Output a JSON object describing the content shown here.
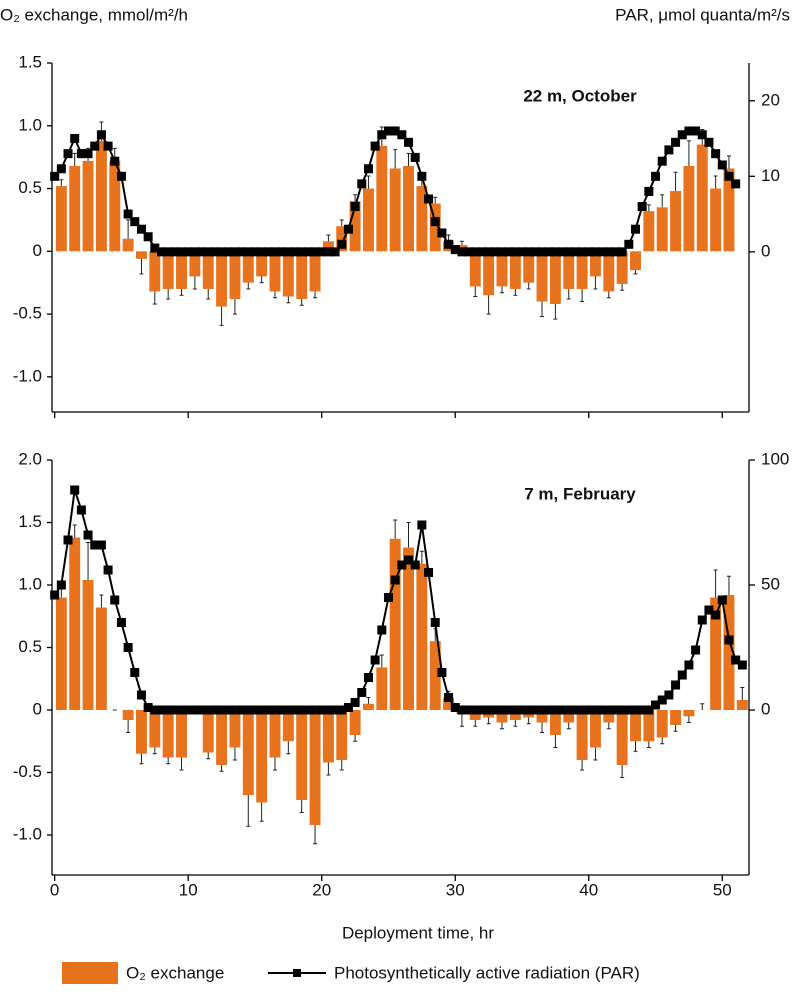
{
  "chart_data": [
    {
      "type": "bar-line",
      "ylabel": "O₂ exchange, mmol/m²/h",
      "y2label": "PAR, μmol quanta/m²/s",
      "annotation": "22 m, October",
      "xlim": [
        -0.2,
        52
      ],
      "xticks": [
        0,
        10,
        20,
        30,
        40,
        50
      ],
      "ylim": [
        -1.28,
        1.5
      ],
      "yticks": [
        {
          "value": -1,
          "label": "-1.0"
        },
        -0.5,
        0,
        0.5,
        {
          "value": 1,
          "label": "1.0"
        },
        1.5
      ],
      "y2lim": [
        -21.2,
        25
      ],
      "y2ticks": [
        0,
        10,
        20
      ],
      "series": [
        {
          "name": "O₂ exchange",
          "type": "bar",
          "color": "#e8731f",
          "x": [
            0.5,
            1.5,
            2.5,
            3.5,
            4.5,
            5.5,
            6.5,
            7.5,
            8.5,
            9.5,
            10.5,
            11.5,
            12.5,
            13.5,
            14.5,
            15.5,
            16.5,
            17.5,
            18.5,
            19.5,
            20.5,
            21.5,
            22.5,
            23.5,
            24.5,
            25.5,
            26.5,
            27.5,
            28.5,
            29.5,
            30.5,
            31.5,
            32.5,
            33.5,
            34.5,
            35.5,
            36.5,
            37.5,
            38.5,
            39.5,
            40.5,
            41.5,
            42.5,
            43.5,
            44.5,
            45.5,
            46.5,
            47.5,
            48.5,
            49.5,
            50.5
          ],
          "values": [
            0.52,
            0.68,
            0.72,
            0.88,
            0.72,
            0.1,
            -0.06,
            -0.32,
            -0.3,
            -0.3,
            -0.2,
            -0.3,
            -0.44,
            -0.38,
            -0.25,
            -0.2,
            -0.32,
            -0.36,
            -0.38,
            -0.32,
            0.08,
            0.2,
            0.4,
            0.5,
            0.84,
            0.66,
            0.68,
            0.52,
            0.38,
            0.08,
            0.05,
            -0.28,
            -0.35,
            -0.28,
            -0.3,
            -0.25,
            -0.4,
            -0.42,
            -0.3,
            -0.3,
            -0.2,
            -0.32,
            -0.26,
            -0.15,
            0.32,
            0.35,
            0.48,
            0.68,
            0.85,
            0.5,
            0.66
          ],
          "errors": [
            0.05,
            0.1,
            0.1,
            0.15,
            0.1,
            0.15,
            0.12,
            0.1,
            0.08,
            0.05,
            0.1,
            0.08,
            0.15,
            0.12,
            0.05,
            0.05,
            0.05,
            0.05,
            0.05,
            0.05,
            0.05,
            0.05,
            0.05,
            0.1,
            0.15,
            0.15,
            0.1,
            0.05,
            0.05,
            0.05,
            0.03,
            0.08,
            0.15,
            0.05,
            0.05,
            0.05,
            0.12,
            0.12,
            0.08,
            0.1,
            0.1,
            0.05,
            0.05,
            0.03,
            0.05,
            0.1,
            0.15,
            0.2,
            0.12,
            0.1,
            0.1
          ]
        },
        {
          "name": "Photosynthetically active radiation (PAR)",
          "type": "line",
          "axis": "y2",
          "color": "#000000",
          "x": [
            0,
            0.5,
            1,
            1.5,
            2,
            2.5,
            3,
            3.5,
            4,
            4.5,
            5,
            5.5,
            6,
            6.5,
            7,
            7.5,
            8,
            8.5,
            9,
            9.5,
            10,
            10.5,
            11,
            11.5,
            12,
            12.5,
            13,
            13.5,
            14,
            14.5,
            15,
            15.5,
            16,
            16.5,
            17,
            17.5,
            18,
            18.5,
            19,
            19.5,
            20,
            20.5,
            21,
            21.5,
            22,
            22.5,
            23,
            23.5,
            24,
            24.5,
            25,
            25.5,
            26,
            26.5,
            27,
            27.5,
            28,
            28.5,
            29,
            29.5,
            30,
            30.5,
            31,
            31.5,
            32,
            32.5,
            33,
            33.5,
            34,
            34.5,
            35,
            35.5,
            36,
            36.5,
            37,
            37.5,
            38,
            38.5,
            39,
            39.5,
            40,
            40.5,
            41,
            41.5,
            42,
            42.5,
            43,
            43.5,
            44,
            44.5,
            45,
            45.5,
            46,
            46.5,
            47,
            47.5,
            48,
            48.5,
            49,
            49.5,
            50,
            50.5,
            51
          ],
          "values": [
            10,
            11,
            13,
            15,
            13,
            13,
            14,
            15.5,
            14,
            12,
            10,
            5,
            4,
            3,
            2,
            0.5,
            0,
            0,
            0,
            0,
            0,
            0,
            0,
            0,
            0,
            0,
            0,
            0,
            0,
            0,
            0,
            0,
            0,
            0,
            0,
            0,
            0,
            0,
            0,
            0,
            0,
            0,
            0,
            1,
            3,
            6,
            9,
            11,
            14,
            15.5,
            16,
            16,
            15.5,
            14.5,
            12.5,
            10,
            7,
            4,
            2.5,
            1,
            0.3,
            0,
            0,
            0,
            0,
            0,
            0,
            0,
            0,
            0,
            0,
            0,
            0,
            0,
            0,
            0,
            0,
            0,
            0,
            0,
            0,
            0,
            0,
            0,
            0,
            0,
            1,
            3,
            6,
            8,
            10,
            12,
            13.5,
            14.5,
            15.5,
            16,
            16,
            15.5,
            14.5,
            13,
            11.5,
            10,
            9
          ]
        }
      ]
    },
    {
      "type": "bar-line",
      "annotation": "7 m, February",
      "xlabel": "Deployment time, hr",
      "xlim": [
        -0.2,
        52
      ],
      "xticks": [
        0,
        10,
        20,
        30,
        40,
        50
      ],
      "ylim": [
        -1.32,
        2.0
      ],
      "yticks": [
        {
          "value": -1,
          "label": "-1.0"
        },
        -0.5,
        0,
        0.5,
        {
          "value": 1,
          "label": "1.0"
        },
        1.5,
        {
          "value": 2,
          "label": "2.0"
        }
      ],
      "y2lim": [
        -66,
        100
      ],
      "y2ticks": [
        0,
        50,
        100
      ],
      "series": [
        {
          "type": "bar",
          "color": "#e8731f",
          "x": [
            0.5,
            1.5,
            2.5,
            3.5,
            4.5,
            5.5,
            6.5,
            7.5,
            8.5,
            9.5,
            10.5,
            11.5,
            12.5,
            13.5,
            14.5,
            15.5,
            16.5,
            17.5,
            18.5,
            19.5,
            20.5,
            21.5,
            22.5,
            23.5,
            24.5,
            25.5,
            26.5,
            27.5,
            28.5,
            29.5,
            30.5,
            31.5,
            32.5,
            33.5,
            34.5,
            35.5,
            36.5,
            37.5,
            38.5,
            39.5,
            40.5,
            41.5,
            42.5,
            43.5,
            44.5,
            45.5,
            46.5,
            47.5,
            48.5,
            49.5,
            50.5,
            51.5
          ],
          "values": [
            0.9,
            1.38,
            1.04,
            0.82,
            0.0,
            -0.08,
            -0.35,
            -0.3,
            -0.38,
            -0.38,
            0.0,
            -0.34,
            -0.44,
            -0.3,
            -0.68,
            -0.74,
            -0.38,
            -0.25,
            -0.72,
            -0.92,
            -0.42,
            -0.4,
            -0.2,
            0.05,
            0.34,
            1.37,
            1.3,
            1.17,
            0.55,
            0.1,
            -0.03,
            -0.08,
            -0.06,
            -0.1,
            -0.08,
            -0.06,
            -0.1,
            -0.2,
            -0.1,
            -0.4,
            -0.3,
            -0.1,
            -0.44,
            -0.25,
            -0.25,
            -0.22,
            -0.12,
            -0.05,
            0.0,
            0.9,
            0.92,
            0.08
          ],
          "errors": [
            0.12,
            0.1,
            0.3,
            0.1,
            0,
            0.1,
            0.08,
            0.05,
            0.05,
            0.1,
            0,
            0.05,
            0.05,
            0.1,
            0.25,
            0.15,
            0.1,
            0.1,
            0.1,
            0.15,
            0.1,
            0.08,
            0.05,
            0.05,
            0.1,
            0.15,
            0.2,
            0.1,
            0.1,
            0.05,
            0.1,
            0.05,
            0.05,
            0.05,
            0.05,
            0.05,
            0.08,
            0.1,
            0.05,
            0.08,
            0.1,
            0.05,
            0.1,
            0.08,
            0.05,
            0.05,
            0.05,
            0.05,
            0.05,
            0.22,
            0.15,
            0.1
          ]
        },
        {
          "type": "line",
          "axis": "y2",
          "color": "#000000",
          "x": [
            0,
            0.5,
            1,
            1.5,
            2,
            2.5,
            3,
            3.5,
            4,
            4.5,
            5,
            5.5,
            6,
            6.5,
            7,
            7.5,
            8,
            8.5,
            9,
            9.5,
            10,
            10.5,
            11,
            11.5,
            12,
            12.5,
            13,
            13.5,
            14,
            14.5,
            15,
            15.5,
            16,
            16.5,
            17,
            17.5,
            18,
            18.5,
            19,
            19.5,
            20,
            20.5,
            21,
            21.5,
            22,
            22.5,
            23,
            23.5,
            24,
            24.5,
            25,
            25.5,
            26,
            26.5,
            27,
            27.5,
            28,
            28.5,
            29,
            29.5,
            30,
            30.5,
            31,
            31.5,
            32,
            32.5,
            33,
            33.5,
            34,
            34.5,
            35,
            35.5,
            36,
            36.5,
            37,
            37.5,
            38,
            38.5,
            39,
            39.5,
            40,
            40.5,
            41,
            41.5,
            42,
            42.5,
            43,
            43.5,
            44,
            44.5,
            45,
            45.5,
            46,
            46.5,
            47,
            47.5,
            48,
            48.5,
            49,
            49.5,
            50,
            50.5,
            51,
            51.5
          ],
          "values": [
            46,
            50,
            68,
            88,
            80,
            70,
            66,
            66,
            56,
            44,
            35,
            25,
            15,
            6,
            1,
            0,
            0,
            0,
            0,
            0,
            0,
            0,
            0,
            0,
            0,
            0,
            0,
            0,
            0,
            0,
            0,
            0,
            0,
            0,
            0,
            0,
            0,
            0,
            0,
            0,
            0,
            0,
            0,
            0,
            1,
            3,
            7,
            13,
            20,
            32,
            45,
            52,
            58,
            60,
            58,
            74,
            55,
            35,
            15,
            5,
            1,
            0,
            0,
            0,
            0,
            0,
            0,
            0,
            0,
            0,
            0,
            0,
            0,
            0,
            0,
            0,
            0,
            0,
            0,
            0,
            0,
            0,
            0,
            0,
            0,
            0,
            0,
            0,
            0,
            0,
            2,
            4,
            6,
            10,
            14,
            18,
            24,
            36,
            40,
            38,
            44,
            28,
            20,
            18
          ]
        }
      ]
    }
  ]
}
